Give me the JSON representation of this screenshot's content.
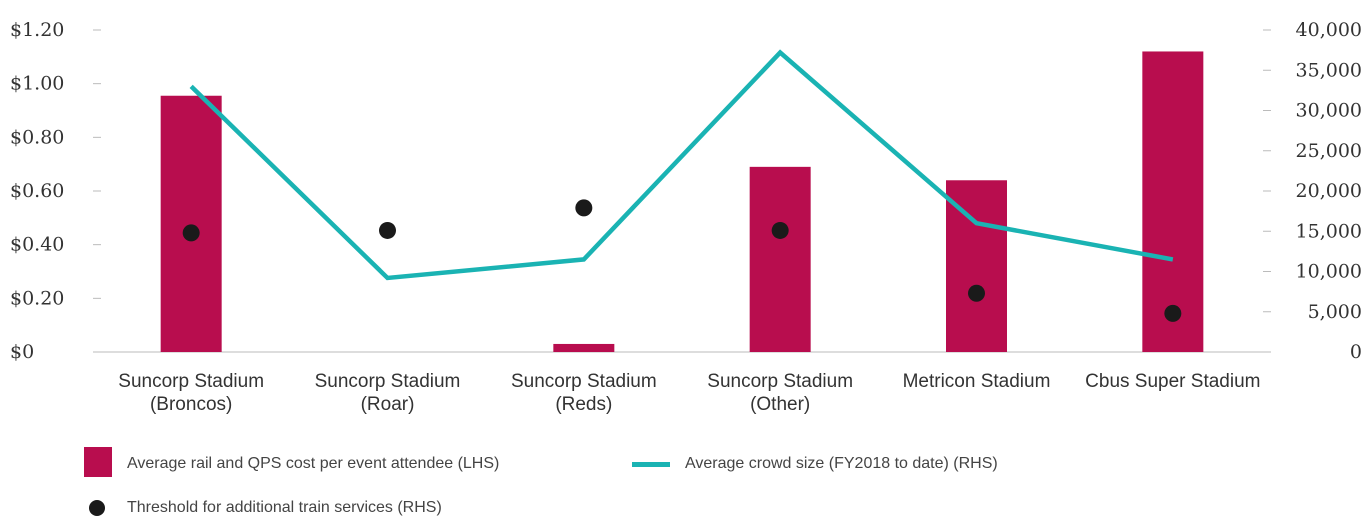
{
  "chart_data": {
    "type": "bar",
    "categories": [
      [
        "Suncorp Stadium",
        "(Broncos)"
      ],
      [
        "Suncorp Stadium",
        "(Roar)"
      ],
      [
        "Suncorp Stadium",
        "(Reds)"
      ],
      [
        "Suncorp Stadium",
        "(Other)"
      ],
      [
        "Metricon Stadium"
      ],
      [
        "Cbus Super Stadium"
      ]
    ],
    "series": [
      {
        "name": "Average rail and QPS cost per event attendee (LHS)",
        "type": "bar",
        "axis": "left",
        "color": "#b80d4e",
        "values": [
          0.955,
          0,
          0.03,
          0.69,
          0.64,
          1.12
        ]
      },
      {
        "name": "Average crowd size (FY2018 to date) (RHS)",
        "type": "line",
        "axis": "right",
        "color": "#1ab3b3",
        "values": [
          33000,
          9200,
          11500,
          37200,
          16000,
          11500
        ]
      },
      {
        "name": "Threshold for additional train services (RHS)",
        "type": "scatter",
        "axis": "right",
        "color": "#1a1a1a",
        "values": [
          14800,
          15100,
          17900,
          15100,
          7300,
          4800
        ]
      }
    ],
    "y_left": {
      "ylim": [
        0,
        1.2
      ],
      "ticks": [
        0,
        0.2,
        0.4,
        0.6,
        0.8,
        1.0,
        1.2
      ],
      "tick_labels": [
        "$0",
        "$0.20",
        "$0.40",
        "$0.60",
        "$0.80",
        "$1.00",
        "$1.20"
      ]
    },
    "y_right": {
      "ylim": [
        0,
        40000
      ],
      "ticks": [
        0,
        5000,
        10000,
        15000,
        20000,
        25000,
        30000,
        35000,
        40000
      ],
      "tick_labels": [
        "0",
        "5,000",
        "10,000",
        "15,000",
        "20,000",
        "25,000",
        "30,000",
        "35,000",
        "40,000"
      ]
    },
    "grid": false,
    "legend_position": "bottom-left"
  }
}
